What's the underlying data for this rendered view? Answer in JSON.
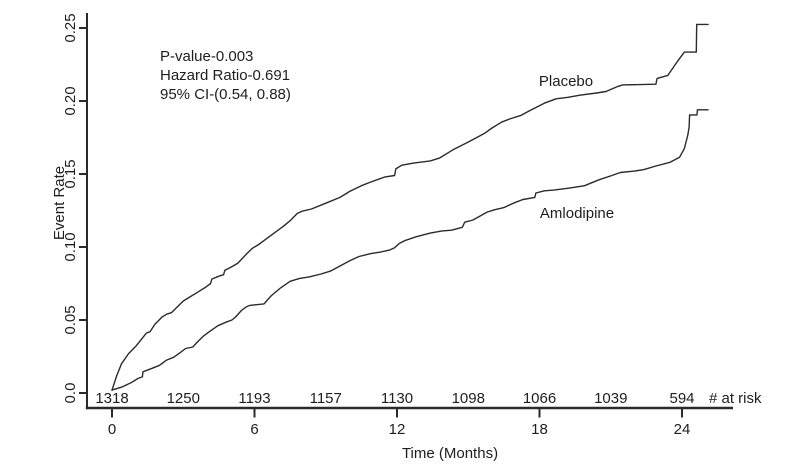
{
  "colors": {
    "background": "#ffffff",
    "line": "#2b2b2b",
    "text": "#1e1e1e"
  },
  "chart_data": {
    "type": "line",
    "title": "",
    "xlabel": "Time (Months)",
    "ylabel": "Event Rate",
    "xlim": [
      0,
      26
    ],
    "ylim": [
      0,
      0.26
    ],
    "grid": false,
    "x_ticks": {
      "values": [
        0,
        6,
        12,
        18,
        24
      ],
      "labels": [
        "0",
        "6",
        "12",
        "18",
        "24"
      ]
    },
    "y_ticks": {
      "values": [
        0,
        0.05,
        0.1,
        0.15,
        0.2,
        0.25
      ],
      "labels": [
        "0.0",
        "0.05",
        "0.10",
        "0.15",
        "0.20",
        "0.25"
      ]
    },
    "stats_annotation": {
      "lines": [
        "P-value-0.003",
        "Hazard Ratio-0.691",
        "95% CI-(0.54, 0.88)"
      ]
    },
    "series": [
      {
        "name": "Placebo",
        "points": [
          [
            0,
            0.002
          ],
          [
            0.2,
            0.012
          ],
          [
            0.4,
            0.02
          ],
          [
            0.7,
            0.027
          ],
          [
            1.0,
            0.032
          ],
          [
            1.2,
            0.036
          ],
          [
            1.45,
            0.041
          ],
          [
            1.6,
            0.042
          ],
          [
            1.8,
            0.047
          ],
          [
            2.1,
            0.052
          ],
          [
            2.3,
            0.054
          ],
          [
            2.5,
            0.055
          ],
          [
            2.75,
            0.059
          ],
          [
            3.0,
            0.063
          ],
          [
            3.3,
            0.066
          ],
          [
            3.6,
            0.069
          ],
          [
            3.9,
            0.072
          ],
          [
            4.15,
            0.075
          ],
          [
            4.2,
            0.078
          ],
          [
            4.5,
            0.08
          ],
          [
            4.7,
            0.081
          ],
          [
            4.75,
            0.084
          ],
          [
            5.1,
            0.087
          ],
          [
            5.3,
            0.089
          ],
          [
            5.65,
            0.095
          ],
          [
            5.9,
            0.099
          ],
          [
            6.2,
            0.102
          ],
          [
            6.7,
            0.108
          ],
          [
            7.2,
            0.114
          ],
          [
            7.5,
            0.118
          ],
          [
            7.8,
            0.123
          ],
          [
            8.0,
            0.1245
          ],
          [
            8.4,
            0.126
          ],
          [
            9.0,
            0.13
          ],
          [
            9.6,
            0.134
          ],
          [
            10.0,
            0.138
          ],
          [
            10.5,
            0.142
          ],
          [
            10.9,
            0.1445
          ],
          [
            11.5,
            0.148
          ],
          [
            11.9,
            0.149
          ],
          [
            11.95,
            0.1535
          ],
          [
            12.2,
            0.156
          ],
          [
            12.7,
            0.1575
          ],
          [
            13.4,
            0.159
          ],
          [
            13.8,
            0.161
          ],
          [
            14.4,
            0.167
          ],
          [
            14.9,
            0.171
          ],
          [
            15.3,
            0.1745
          ],
          [
            15.7,
            0.178
          ],
          [
            16.0,
            0.1815
          ],
          [
            16.4,
            0.1855
          ],
          [
            16.8,
            0.188
          ],
          [
            17.2,
            0.19
          ],
          [
            17.6,
            0.1935
          ],
          [
            18.2,
            0.1985
          ],
          [
            18.7,
            0.2015
          ],
          [
            19.2,
            0.2025
          ],
          [
            19.7,
            0.204
          ],
          [
            20.4,
            0.2055
          ],
          [
            20.8,
            0.2065
          ],
          [
            21.3,
            0.21
          ],
          [
            21.5,
            0.211
          ],
          [
            22.9,
            0.2115
          ],
          [
            22.95,
            0.2155
          ],
          [
            23.4,
            0.2175
          ],
          [
            23.8,
            0.227
          ],
          [
            24.1,
            0.2335
          ],
          [
            24.6,
            0.2335
          ],
          [
            24.62,
            0.2525
          ],
          [
            25.1,
            0.2525
          ]
        ]
      },
      {
        "name": "Amlodipine",
        "points": [
          [
            0,
            0.002
          ],
          [
            0.4,
            0.004
          ],
          [
            0.8,
            0.007
          ],
          [
            1.1,
            0.01
          ],
          [
            1.28,
            0.011
          ],
          [
            1.3,
            0.0145
          ],
          [
            1.7,
            0.017
          ],
          [
            2.0,
            0.019
          ],
          [
            2.3,
            0.0225
          ],
          [
            2.6,
            0.0245
          ],
          [
            2.9,
            0.028
          ],
          [
            3.1,
            0.0305
          ],
          [
            3.4,
            0.0315
          ],
          [
            3.6,
            0.035
          ],
          [
            3.85,
            0.039
          ],
          [
            4.1,
            0.042
          ],
          [
            4.45,
            0.046
          ],
          [
            4.8,
            0.0485
          ],
          [
            5.05,
            0.05
          ],
          [
            5.2,
            0.052
          ],
          [
            5.45,
            0.0565
          ],
          [
            5.65,
            0.059
          ],
          [
            5.8,
            0.06
          ],
          [
            6.4,
            0.061
          ],
          [
            6.7,
            0.0665
          ],
          [
            7.1,
            0.072
          ],
          [
            7.5,
            0.0765
          ],
          [
            7.9,
            0.0785
          ],
          [
            8.3,
            0.0795
          ],
          [
            8.8,
            0.0815
          ],
          [
            9.2,
            0.0835
          ],
          [
            9.6,
            0.087
          ],
          [
            10.0,
            0.0905
          ],
          [
            10.4,
            0.0935
          ],
          [
            10.9,
            0.0955
          ],
          [
            11.3,
            0.0965
          ],
          [
            11.7,
            0.098
          ],
          [
            11.9,
            0.0995
          ],
          [
            12.1,
            0.1025
          ],
          [
            12.35,
            0.1045
          ],
          [
            12.8,
            0.107
          ],
          [
            13.4,
            0.1095
          ],
          [
            13.9,
            0.111
          ],
          [
            14.3,
            0.1115
          ],
          [
            14.75,
            0.1135
          ],
          [
            14.85,
            0.117
          ],
          [
            15.2,
            0.1185
          ],
          [
            15.8,
            0.124
          ],
          [
            16.1,
            0.1255
          ],
          [
            16.5,
            0.127
          ],
          [
            16.9,
            0.13
          ],
          [
            17.3,
            0.1325
          ],
          [
            17.8,
            0.134
          ],
          [
            17.85,
            0.137
          ],
          [
            18.2,
            0.1385
          ],
          [
            18.6,
            0.139
          ],
          [
            19.3,
            0.1405
          ],
          [
            19.9,
            0.142
          ],
          [
            20.5,
            0.146
          ],
          [
            21.05,
            0.149
          ],
          [
            21.4,
            0.151
          ],
          [
            22.0,
            0.152
          ],
          [
            22.4,
            0.153
          ],
          [
            22.9,
            0.1555
          ],
          [
            23.5,
            0.158
          ],
          [
            23.9,
            0.1615
          ],
          [
            24.1,
            0.1675
          ],
          [
            24.25,
            0.177
          ],
          [
            24.3,
            0.182
          ],
          [
            24.32,
            0.1905
          ],
          [
            24.63,
            0.1905
          ],
          [
            24.65,
            0.194
          ],
          [
            25.1,
            0.194
          ]
        ]
      }
    ],
    "at_risk": {
      "label": "# at risk",
      "months": [
        0,
        3,
        6,
        9,
        12,
        15,
        18,
        21,
        24
      ],
      "values": [
        "1318",
        "1250",
        "1193",
        "1157",
        "1130",
        "1098",
        "1066",
        "1039",
        "594"
      ]
    }
  }
}
